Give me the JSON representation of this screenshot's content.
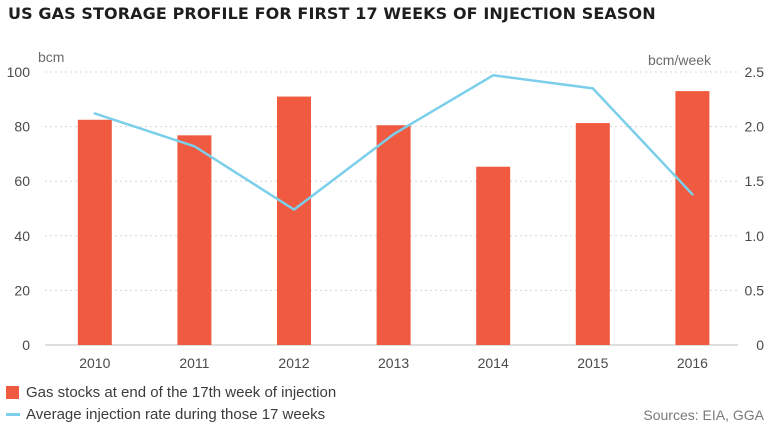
{
  "title": "US GAS STORAGE PROFILE FOR FIRST 17 WEEKS OF INJECTION SEASON",
  "source": "Sources: EIA, GGA",
  "colors": {
    "bar": "#f05a40",
    "line": "#7ccfea",
    "grid": "#d7d7d7",
    "text": "#4a4a4a"
  },
  "chart_data": {
    "type": "bar+line",
    "categories": [
      "2010",
      "2011",
      "2012",
      "2013",
      "2014",
      "2015",
      "2016"
    ],
    "series": [
      {
        "name": "Gas stocks at end of the 17th week of injection",
        "type": "bar",
        "axis": "left",
        "values": [
          82.5,
          76.8,
          91.0,
          80.5,
          65.3,
          81.3,
          93.0
        ]
      },
      {
        "name": "Average injection rate during those 17 weeks",
        "type": "line",
        "axis": "right",
        "values": [
          2.12,
          1.82,
          1.24,
          1.93,
          2.47,
          2.35,
          1.38
        ]
      }
    ],
    "y_left": {
      "unit": "bcm",
      "range": [
        0,
        100
      ],
      "ticks": [
        "0",
        "20",
        "40",
        "60",
        "80",
        "100"
      ]
    },
    "y_right": {
      "unit": "bcm/week",
      "range": [
        0,
        2.5
      ],
      "ticks": [
        "0",
        "0.5",
        "1.0",
        "1.5",
        "2.0",
        "2.5"
      ]
    },
    "grid": true,
    "legend_position": "bottom-left"
  }
}
